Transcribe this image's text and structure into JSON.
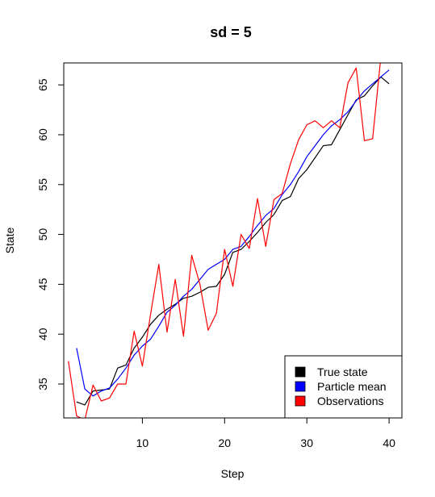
{
  "chart_data": {
    "type": "line",
    "title": "sd =  5",
    "xlabel": "Step",
    "ylabel": "State",
    "xlim": [
      0.44,
      41.56
    ],
    "ylim": [
      31.6,
      67.2
    ],
    "x_ticks": [
      10,
      20,
      30,
      40
    ],
    "y_ticks": [
      35,
      40,
      45,
      50,
      55,
      60,
      65
    ],
    "grid": false,
    "legend_position": "bottom-right",
    "x": [
      1,
      2,
      3,
      4,
      5,
      6,
      7,
      8,
      9,
      10,
      11,
      12,
      13,
      14,
      15,
      16,
      17,
      18,
      19,
      20,
      21,
      22,
      23,
      24,
      25,
      26,
      27,
      28,
      29,
      30,
      31,
      32,
      33,
      34,
      35,
      36,
      37,
      38,
      39,
      40
    ],
    "series": [
      {
        "name": "True state",
        "color": "#000000",
        "values": [
          null,
          33.2,
          32.9,
          34.3,
          34.4,
          34.5,
          36.6,
          36.9,
          38.6,
          39.7,
          41.0,
          41.9,
          42.5,
          43.0,
          43.6,
          43.8,
          44.2,
          44.7,
          44.8,
          46.0,
          48.2,
          48.5,
          49.3,
          50.2,
          51.2,
          52.0,
          53.4,
          53.8,
          55.6,
          56.5,
          57.7,
          58.9,
          59.0,
          60.5,
          62.0,
          63.5,
          63.9,
          64.9,
          65.8,
          65.1
        ]
      },
      {
        "name": "Particle mean",
        "color": "#0000ff",
        "values": [
          null,
          38.6,
          34.5,
          33.8,
          34.3,
          34.6,
          35.5,
          36.6,
          37.9,
          38.8,
          39.5,
          40.8,
          42.2,
          42.9,
          43.8,
          44.5,
          45.5,
          46.5,
          47.0,
          47.5,
          48.5,
          48.8,
          49.8,
          50.9,
          51.9,
          52.6,
          54.0,
          55.0,
          56.3,
          57.8,
          58.9,
          60.0,
          60.9,
          61.5,
          62.3,
          63.4,
          64.4,
          65.1,
          65.8,
          66.5
        ]
      },
      {
        "name": "Observations",
        "color": "#ff0000",
        "values": [
          37.3,
          31.8,
          31.4,
          34.9,
          33.3,
          33.6,
          35.0,
          35.0,
          40.3,
          36.8,
          42.0,
          47.0,
          40.2,
          45.5,
          39.8,
          47.9,
          45.0,
          40.4,
          42.1,
          48.5,
          44.8,
          50.0,
          48.6,
          53.6,
          48.8,
          53.5,
          54.1,
          57.1,
          59.5,
          61.0,
          61.4,
          60.7,
          61.4,
          60.7,
          65.2,
          66.7,
          59.4,
          59.6,
          67.8,
          null
        ]
      }
    ]
  }
}
